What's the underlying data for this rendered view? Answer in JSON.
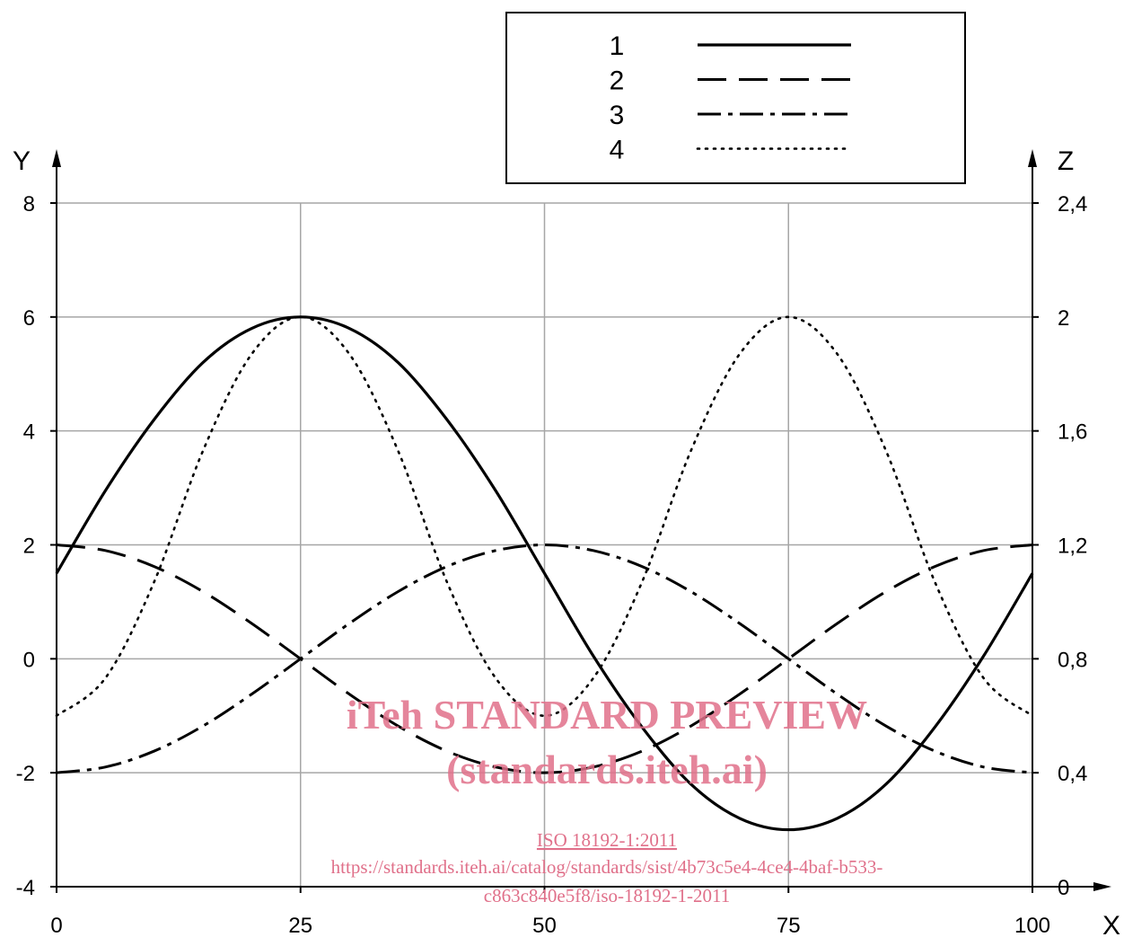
{
  "chart_data": {
    "type": "line",
    "xlabel": "X",
    "ylabel": "Y",
    "y2label": "Z",
    "xlim": [
      0,
      100
    ],
    "ylim": [
      -4,
      8
    ],
    "y2lim": [
      0,
      2.4
    ],
    "xticks": [
      "0",
      "25",
      "50",
      "75",
      "100"
    ],
    "yticks": [
      "-4",
      "-2",
      "0",
      "2",
      "4",
      "6",
      "8"
    ],
    "y2ticks": [
      "0",
      "0,4",
      "0,8",
      "1,2",
      "1,6",
      "2",
      "2,4"
    ],
    "grid": true,
    "legend_position": "top-right",
    "series": [
      {
        "name": "1",
        "style": "solid",
        "x": [
          0,
          5,
          10,
          15,
          20,
          25,
          30,
          35,
          40,
          45,
          50,
          55,
          60,
          65,
          70,
          75,
          80,
          85,
          90,
          95,
          100
        ],
        "y": [
          1.5,
          2.95,
          4.2,
          5.2,
          5.8,
          6.0,
          5.8,
          5.2,
          4.2,
          2.95,
          1.5,
          0.05,
          -1.2,
          -2.2,
          -2.8,
          -3.0,
          -2.8,
          -2.2,
          -1.2,
          0.05,
          1.5
        ]
      },
      {
        "name": "2",
        "style": "dashed",
        "x": [
          0,
          5,
          10,
          15,
          20,
          25,
          30,
          35,
          40,
          45,
          50,
          55,
          60,
          65,
          70,
          75,
          80,
          85,
          90,
          95,
          100
        ],
        "y": [
          2.0,
          1.9,
          1.62,
          1.18,
          0.62,
          0.0,
          -0.62,
          -1.18,
          -1.62,
          -1.9,
          -2.0,
          -1.9,
          -1.62,
          -1.18,
          -0.62,
          0.0,
          0.62,
          1.18,
          1.62,
          1.9,
          2.0
        ]
      },
      {
        "name": "3",
        "style": "dash-dot",
        "x": [
          0,
          5,
          10,
          15,
          20,
          25,
          30,
          35,
          40,
          45,
          50,
          55,
          60,
          65,
          70,
          75,
          80,
          85,
          90,
          95,
          100
        ],
        "y": [
          -2.0,
          -1.9,
          -1.62,
          -1.18,
          -0.62,
          0.0,
          0.62,
          1.18,
          1.62,
          1.9,
          2.0,
          1.9,
          1.62,
          1.18,
          0.62,
          0.0,
          -0.62,
          -1.18,
          -1.62,
          -1.9,
          -2.0
        ]
      },
      {
        "name": "4",
        "style": "dotted",
        "x": [
          0,
          5,
          10,
          15,
          20,
          25,
          30,
          35,
          40,
          45,
          50,
          55,
          60,
          65,
          70,
          75,
          80,
          85,
          90,
          95,
          100
        ],
        "y": [
          -1.0,
          -0.34,
          1.35,
          3.65,
          5.35,
          6.0,
          5.35,
          3.65,
          1.35,
          -0.34,
          -1.0,
          -0.34,
          1.35,
          3.65,
          5.35,
          6.0,
          5.35,
          3.65,
          1.35,
          -0.34,
          -1.0
        ]
      }
    ]
  },
  "watermark": {
    "line1": "iTeh STANDARD PREVIEW",
    "line2": "(standards.iteh.ai)",
    "line3": "ISO 18192-1:2011",
    "line4": "https://standards.iteh.ai/catalog/standards/sist/4b73c5e4-4ce4-4baf-b533-",
    "line5": "c863c840e5f8/iso-18192-1-2011",
    "color": "#e0708a"
  }
}
